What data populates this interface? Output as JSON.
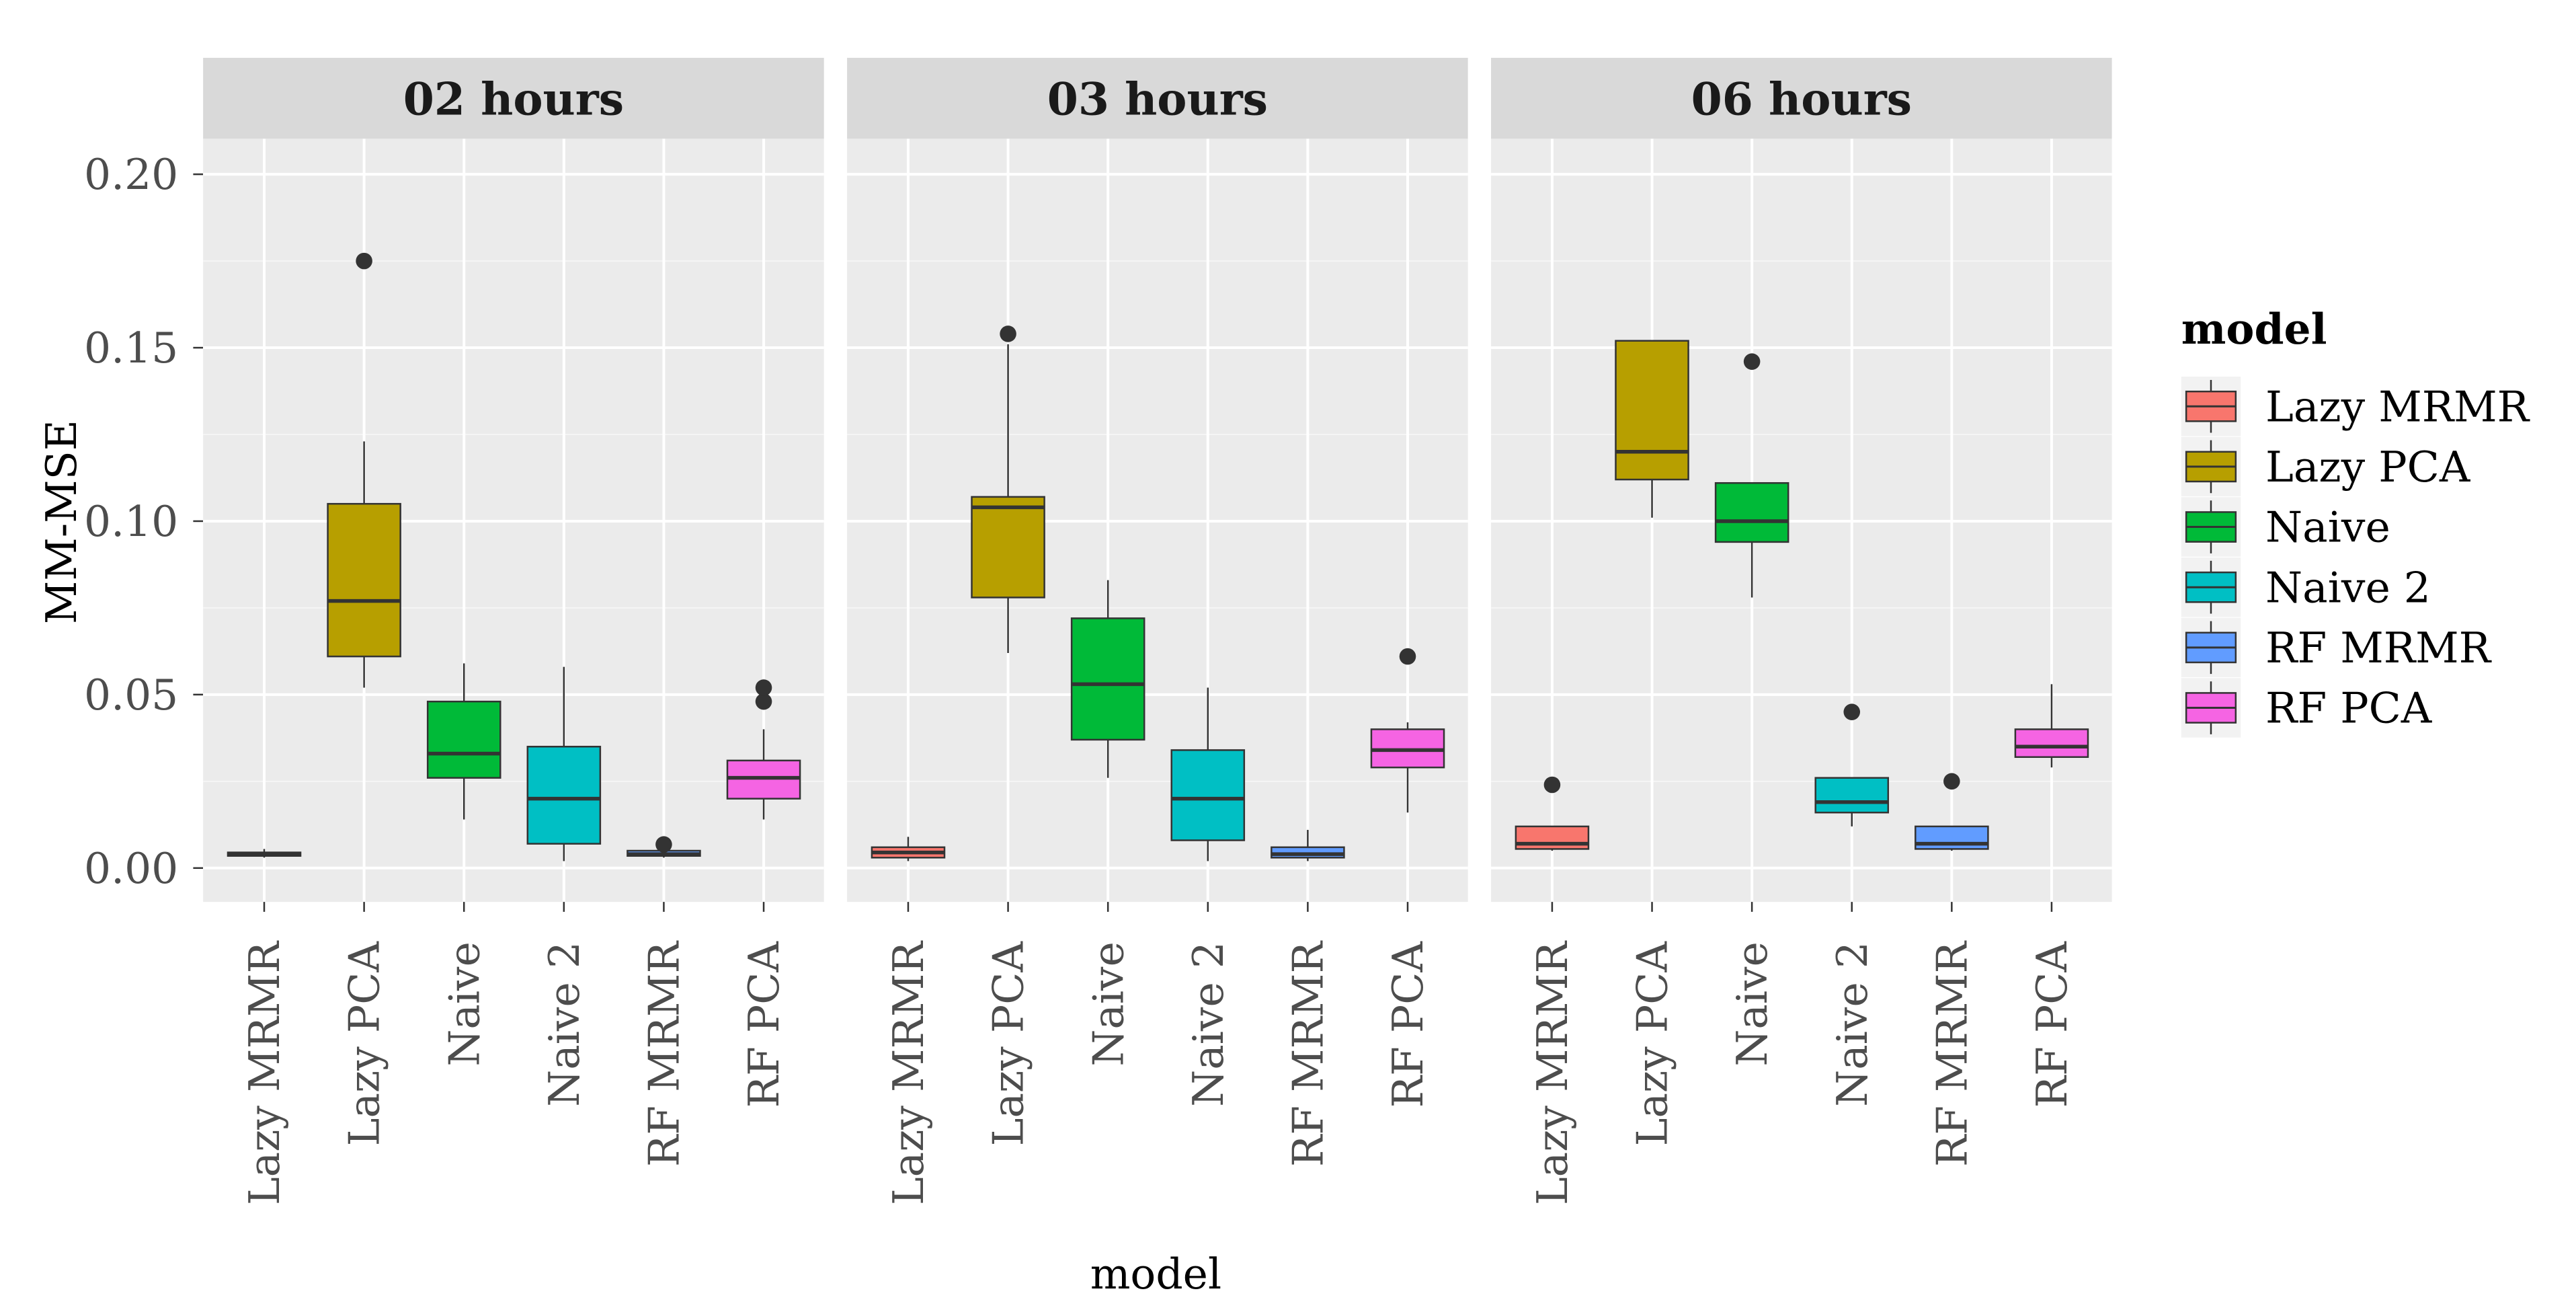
{
  "chart_data": {
    "type": "boxplot",
    "facet_label": "",
    "ylabel": "MM-MSE",
    "xlabel": "model",
    "ylim": [
      -0.01,
      0.22
    ],
    "y_ticks": [
      0.0,
      0.05,
      0.1,
      0.15,
      0.2
    ],
    "y_tick_labels": [
      "0.00",
      "0.05",
      "0.10",
      "0.15",
      "0.20"
    ],
    "categories": [
      "Lazy MRMR",
      "Lazy PCA",
      "Naive",
      "Naive 2",
      "RF MRMR",
      "RF PCA"
    ],
    "colors": {
      "Lazy MRMR": "#F8766D",
      "Lazy PCA": "#B79F00",
      "Naive": "#00BA38",
      "Naive 2": "#00BFC4",
      "RF MRMR": "#619CFF",
      "RF PCA": "#F564E3"
    },
    "legend": {
      "title": "model",
      "entries": [
        "Lazy MRMR",
        "Lazy PCA",
        "Naive",
        "Naive 2",
        "RF MRMR",
        "RF PCA"
      ]
    },
    "panels": [
      {
        "title": "02 hours",
        "boxes": [
          {
            "model": "Lazy MRMR",
            "whisker_low": 0.003,
            "q1": 0.0035,
            "median": 0.004,
            "q3": 0.0045,
            "whisker_high": 0.0055,
            "outliers": []
          },
          {
            "model": "Lazy PCA",
            "whisker_low": 0.052,
            "q1": 0.061,
            "median": 0.077,
            "q3": 0.105,
            "whisker_high": 0.123,
            "outliers": [
              0.175
            ]
          },
          {
            "model": "Naive",
            "whisker_low": 0.014,
            "q1": 0.026,
            "median": 0.033,
            "q3": 0.048,
            "whisker_high": 0.059,
            "outliers": []
          },
          {
            "model": "Naive 2",
            "whisker_low": 0.002,
            "q1": 0.007,
            "median": 0.02,
            "q3": 0.035,
            "whisker_high": 0.058,
            "outliers": []
          },
          {
            "model": "RF MRMR",
            "whisker_low": 0.003,
            "q1": 0.0035,
            "median": 0.004,
            "q3": 0.005,
            "whisker_high": 0.0055,
            "outliers": [
              0.0068
            ]
          },
          {
            "model": "RF PCA",
            "whisker_low": 0.014,
            "q1": 0.02,
            "median": 0.026,
            "q3": 0.031,
            "whisker_high": 0.04,
            "outliers": [
              0.048,
              0.052
            ]
          }
        ]
      },
      {
        "title": "03 hours",
        "boxes": [
          {
            "model": "Lazy MRMR",
            "whisker_low": 0.002,
            "q1": 0.003,
            "median": 0.0045,
            "q3": 0.006,
            "whisker_high": 0.009,
            "outliers": []
          },
          {
            "model": "Lazy PCA",
            "whisker_low": 0.062,
            "q1": 0.078,
            "median": 0.104,
            "q3": 0.107,
            "whisker_high": 0.151,
            "outliers": [
              0.154
            ]
          },
          {
            "model": "Naive",
            "whisker_low": 0.026,
            "q1": 0.037,
            "median": 0.053,
            "q3": 0.072,
            "whisker_high": 0.083,
            "outliers": []
          },
          {
            "model": "Naive 2",
            "whisker_low": 0.002,
            "q1": 0.008,
            "median": 0.02,
            "q3": 0.034,
            "whisker_high": 0.052,
            "outliers": []
          },
          {
            "model": "RF MRMR",
            "whisker_low": 0.002,
            "q1": 0.003,
            "median": 0.004,
            "q3": 0.006,
            "whisker_high": 0.011,
            "outliers": []
          },
          {
            "model": "RF PCA",
            "whisker_low": 0.016,
            "q1": 0.029,
            "median": 0.034,
            "q3": 0.04,
            "whisker_high": 0.042,
            "outliers": [
              0.061
            ]
          }
        ]
      },
      {
        "title": "06 hours",
        "boxes": [
          {
            "model": "Lazy MRMR",
            "whisker_low": 0.005,
            "q1": 0.0055,
            "median": 0.007,
            "q3": 0.012,
            "whisker_high": 0.012,
            "outliers": [
              0.024
            ]
          },
          {
            "model": "Lazy PCA",
            "whisker_low": 0.101,
            "q1": 0.112,
            "median": 0.12,
            "q3": 0.152,
            "whisker_high": 0.152,
            "outliers": []
          },
          {
            "model": "Naive",
            "whisker_low": 0.078,
            "q1": 0.094,
            "median": 0.1,
            "q3": 0.111,
            "whisker_high": 0.111,
            "outliers": [
              0.146
            ]
          },
          {
            "model": "Naive 2",
            "whisker_low": 0.012,
            "q1": 0.016,
            "median": 0.019,
            "q3": 0.026,
            "whisker_high": 0.026,
            "outliers": [
              0.045
            ]
          },
          {
            "model": "RF MRMR",
            "whisker_low": 0.005,
            "q1": 0.0055,
            "median": 0.007,
            "q3": 0.012,
            "whisker_high": 0.012,
            "outliers": [
              0.025
            ]
          },
          {
            "model": "RF PCA",
            "whisker_low": 0.029,
            "q1": 0.032,
            "median": 0.035,
            "q3": 0.04,
            "whisker_high": 0.053,
            "outliers": []
          }
        ]
      }
    ]
  }
}
